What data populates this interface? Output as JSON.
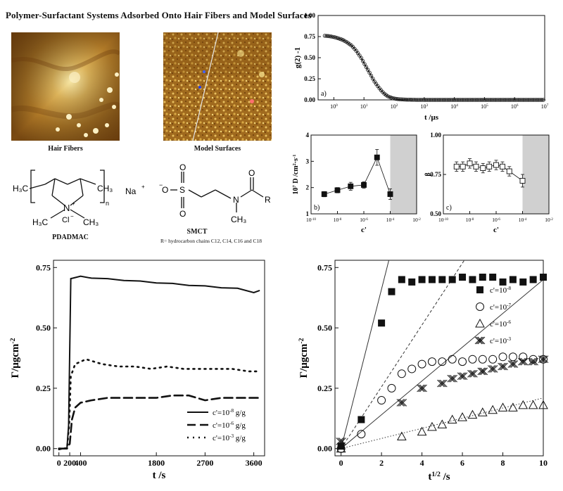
{
  "header": {
    "title": "Polymer-Surfactant Systems Adsorbed Onto Hair Fibers and Model Surfaces"
  },
  "images": {
    "hair_fibers_caption": "Hair Fibers",
    "model_surfaces_caption": "Model Surfaces"
  },
  "chemistry": {
    "pdadmac_label": "PDADMAC",
    "smct_label": "SMCT",
    "smct_note": "R= hydrocarbon chains C12, C14, C16 and C18",
    "na_label": "Na",
    "r_label": "R"
  },
  "chart_data": [
    {
      "id": "a",
      "type": "scatter",
      "panel_label": "a)",
      "xlabel": "t /μs",
      "ylabel": "g(2) -1",
      "xscale": "log",
      "xlim": [
        0.3,
        10000000
      ],
      "ylim": [
        0,
        1.0
      ],
      "yticks": [
        "0.00",
        "0.25",
        "0.50",
        "0.75",
        "1.00"
      ],
      "xticks": [
        "10^0",
        "10^1",
        "10^2",
        "10^3",
        "10^4",
        "10^5",
        "10^6",
        "10^7"
      ],
      "x": [
        0.5,
        0.7,
        1,
        1.4,
        2,
        2.8,
        4,
        5.6,
        8,
        11,
        16,
        22,
        32,
        45,
        63,
        90,
        126,
        180,
        250,
        360,
        500,
        1000,
        2000,
        5000,
        10000,
        30000,
        100000,
        300000,
        1000000,
        3000000,
        10000000
      ],
      "y": [
        0.76,
        0.755,
        0.745,
        0.73,
        0.71,
        0.68,
        0.64,
        0.58,
        0.5,
        0.41,
        0.31,
        0.22,
        0.14,
        0.08,
        0.04,
        0.02,
        0.01,
        0.006,
        0.003,
        0.002,
        0.001,
        0,
        0,
        0,
        0,
        0,
        0,
        0,
        0,
        0,
        0
      ]
    },
    {
      "id": "b",
      "type": "scatter",
      "panel_label": "b)",
      "xlabel": "c'",
      "ylabel": "10^7 D /cm^2·s^-1",
      "xscale": "log",
      "xlim": [
        1e-10,
        0.01
      ],
      "ylim": [
        1,
        4
      ],
      "yticks": [
        "1",
        "2",
        "3",
        "4"
      ],
      "xticks": [
        "10^-10",
        "10^-8",
        "10^-6",
        "10^-4",
        "10^-2"
      ],
      "shaded_from": 0.0001,
      "x": [
        1e-09,
        1e-08,
        1e-07,
        1e-06,
        1e-05,
        0.0001
      ],
      "y": [
        1.75,
        1.9,
        2.05,
        2.1,
        3.15,
        1.75
      ],
      "err": [
        0.1,
        0.1,
        0.15,
        0.12,
        0.3,
        0.2
      ]
    },
    {
      "id": "c",
      "type": "scatter",
      "panel_label": "c)",
      "xlabel": "c'",
      "ylabel": "β",
      "xscale": "log",
      "xlim": [
        1e-10,
        0.01
      ],
      "ylim": [
        0.5,
        1.0
      ],
      "yticks": [
        "0.50",
        "0.75",
        "1.00"
      ],
      "xticks": [
        "10^-10",
        "10^-8",
        "10^-6",
        "10^-4",
        "10^-2"
      ],
      "shaded_from": 0.0001,
      "x": [
        1e-09,
        3e-09,
        1e-08,
        3e-08,
        1e-07,
        3e-07,
        1e-06,
        3e-06,
        1e-05,
        0.0001
      ],
      "y": [
        0.8,
        0.8,
        0.82,
        0.8,
        0.79,
        0.8,
        0.81,
        0.8,
        0.77,
        0.71
      ],
      "err": [
        0.03,
        0.03,
        0.03,
        0.03,
        0.03,
        0.03,
        0.03,
        0.03,
        0.03,
        0.04
      ]
    },
    {
      "id": "d",
      "type": "line",
      "xlabel": "t /s",
      "ylabel": "Γ/μgcm^-2",
      "xlim": [
        -100,
        3800
      ],
      "ylim": [
        -0.03,
        0.78
      ],
      "xticks": [
        "0",
        "200",
        "400",
        "1800",
        "2700",
        "3600"
      ],
      "xtick_values": [
        0,
        200,
        400,
        1800,
        2700,
        3600
      ],
      "yticks": [
        "0.00",
        "0.25",
        "0.50",
        "0.75"
      ],
      "legend_position": "bottom-right",
      "series": [
        {
          "name": "c'=10^-8 g/g",
          "style": "solid",
          "x": [
            0,
            150,
            180,
            220,
            260,
            400,
            600,
            900,
            1200,
            1500,
            1800,
            2100,
            2400,
            2700,
            3000,
            3300,
            3600,
            3700
          ],
          "y": [
            0,
            0,
            0.1,
            0.7,
            0.71,
            0.71,
            0.71,
            0.7,
            0.7,
            0.69,
            0.69,
            0.68,
            0.68,
            0.67,
            0.67,
            0.66,
            0.65,
            0.65
          ]
        },
        {
          "name": "c'=10^-6 g/g",
          "style": "dashed",
          "x": [
            0,
            150,
            200,
            240,
            300,
            400,
            600,
            900,
            1200,
            1500,
            1800,
            2100,
            2400,
            2700,
            3000,
            3300,
            3600,
            3700
          ],
          "y": [
            0,
            0,
            0.02,
            0.12,
            0.17,
            0.19,
            0.2,
            0.21,
            0.21,
            0.21,
            0.21,
            0.22,
            0.22,
            0.2,
            0.21,
            0.21,
            0.21,
            0.21
          ]
        },
        {
          "name": "c'=10^-3 g/g",
          "style": "dotted",
          "x": [
            0,
            150,
            190,
            220,
            300,
            500,
            800,
            1100,
            1400,
            1700,
            2000,
            2300,
            2600,
            2900,
            3200,
            3500,
            3700
          ],
          "y": [
            0,
            0,
            0.1,
            0.3,
            0.35,
            0.37,
            0.35,
            0.34,
            0.34,
            0.33,
            0.34,
            0.33,
            0.33,
            0.33,
            0.33,
            0.32,
            0.32
          ]
        }
      ]
    },
    {
      "id": "e",
      "type": "scatter",
      "xlabel": "t^1/2 /s",
      "ylabel": "Γ/μgcm^-2",
      "xlim": [
        -0.3,
        10
      ],
      "ylim": [
        -0.03,
        0.78
      ],
      "xticks": [
        "0",
        "2",
        "4",
        "6",
        "8",
        "10"
      ],
      "yticks": [
        "0.00",
        "0.25",
        "0.50",
        "0.75"
      ],
      "legend_position": "top-right",
      "series": [
        {
          "name": "c'=10^-8",
          "marker": "filled-square",
          "x": [
            0,
            1,
            2,
            2.5,
            3,
            3.5,
            4,
            4.5,
            5,
            5.5,
            6,
            6.5,
            7,
            7.5,
            8,
            8.5,
            9,
            9.5,
            10
          ],
          "y": [
            0.01,
            0.12,
            0.52,
            0.65,
            0.7,
            0.69,
            0.7,
            0.7,
            0.7,
            0.7,
            0.71,
            0.7,
            0.71,
            0.71,
            0.69,
            0.7,
            0.69,
            0.7,
            0.71
          ]
        },
        {
          "name": "c'=10^-7",
          "marker": "open-circle",
          "x": [
            0,
            1,
            2,
            2.5,
            3,
            3.5,
            4,
            4.5,
            5,
            5.5,
            6,
            6.5,
            7,
            7.5,
            8,
            8.5,
            9,
            9.5,
            10
          ],
          "y": [
            0.0,
            0.06,
            0.2,
            0.25,
            0.31,
            0.33,
            0.35,
            0.36,
            0.36,
            0.37,
            0.36,
            0.37,
            0.37,
            0.37,
            0.38,
            0.38,
            0.38,
            0.37,
            0.37
          ]
        },
        {
          "name": "c'=10^-6",
          "marker": "open-triangle",
          "x": [
            0,
            3,
            4,
            4.5,
            5,
            5.5,
            6,
            6.5,
            7,
            7.5,
            8,
            8.5,
            9,
            9.5,
            10
          ],
          "y": [
            0.0,
            0.05,
            0.07,
            0.09,
            0.1,
            0.12,
            0.13,
            0.14,
            0.15,
            0.16,
            0.17,
            0.17,
            0.18,
            0.18,
            0.18
          ]
        },
        {
          "name": "c'=10^-3",
          "marker": "crossed-x",
          "x": [
            0,
            3,
            4,
            5,
            5.5,
            6,
            6.5,
            7,
            7.5,
            8,
            8.5,
            9,
            9.5,
            10
          ],
          "y": [
            0.03,
            0.19,
            0.25,
            0.27,
            0.29,
            0.3,
            0.31,
            0.32,
            0.33,
            0.34,
            0.35,
            0.36,
            0.36,
            0.37
          ]
        }
      ],
      "fit_lines": [
        {
          "style": "solid",
          "slope": 0.33
        },
        {
          "style": "dashed",
          "slope": 0.128
        },
        {
          "style": "solid",
          "slope": 0.07
        },
        {
          "style": "dotted",
          "slope": 0.021
        }
      ]
    }
  ]
}
